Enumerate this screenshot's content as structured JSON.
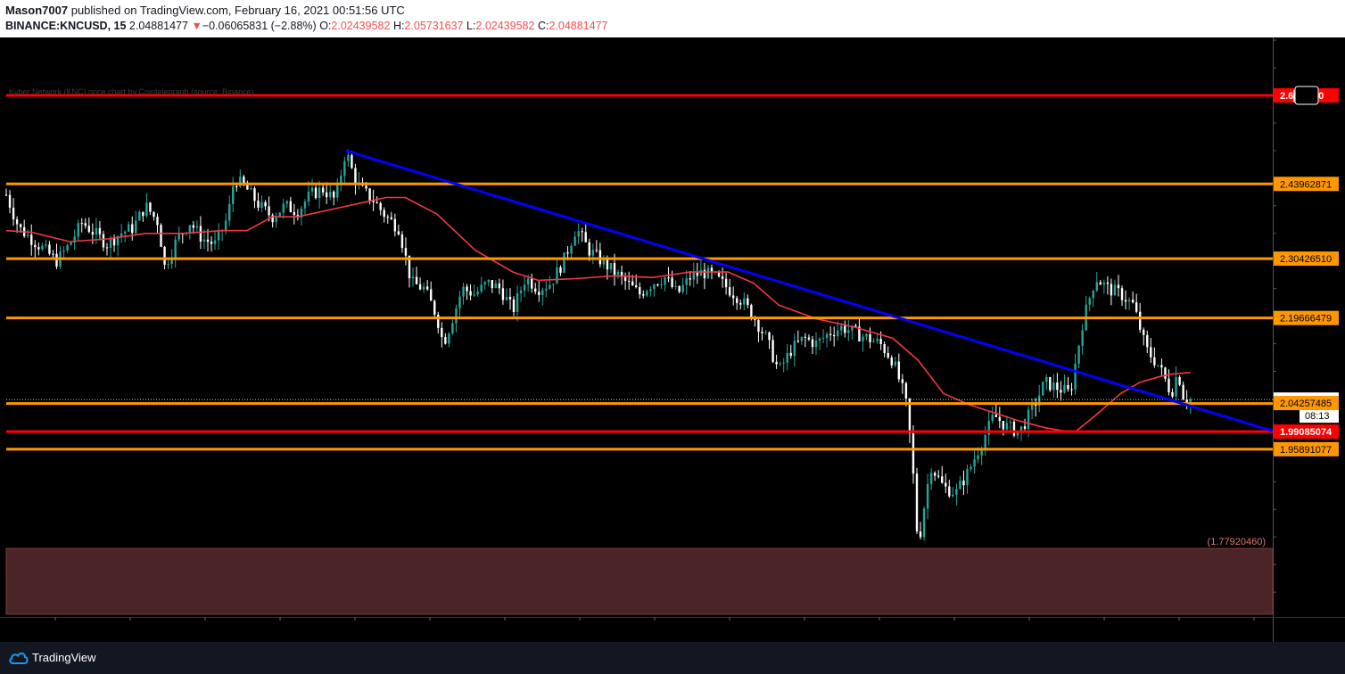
{
  "header": {
    "author": "Mason7007",
    "published_text": "published on TradingView.com, February 16, 2021 00:51:56 UTC",
    "symbol": "BINANCE:KNCUSD, 15",
    "last_price": "2.04881477",
    "change_arrow": "▼",
    "change": "−0.06065831 (−2.88%)",
    "open_label": "O:",
    "open": "2.02439582",
    "high_label": "H:",
    "high": "2.05731637",
    "low_label": "L:",
    "low": "2.02439582",
    "close_label": "C:",
    "close": "2.04881477"
  },
  "footer": {
    "brand": "TradingView"
  },
  "colors": {
    "background": "#000000",
    "candle_up": "#26a69a",
    "candle_down": "#ffffff",
    "support_resistance": "#ff9800",
    "key_level": "#ff0000",
    "trendline": "#0000ff",
    "moving_average": "#f23645",
    "demand_zone": "#4a2426"
  },
  "chart_data": {
    "type": "candlestick",
    "symbol": "BINANCE:KNCUSD",
    "interval": "15",
    "y_range": [
      1.655,
      2.705
    ],
    "horizontal_levels": [
      {
        "price": 2.6,
        "color": "key_level",
        "label": "2.6██840"
      },
      {
        "price": 2.43962871,
        "color": "support_resistance",
        "label": "2.43962871"
      },
      {
        "price": 2.3042651,
        "color": "support_resistance",
        "label": "2.30426510"
      },
      {
        "price": 2.19666479,
        "color": "support_resistance",
        "label": "2.19666479"
      },
      {
        "price": 2.0416,
        "color": "support_resistance",
        "label": ""
      },
      {
        "price": 1.99085074,
        "color": "key_level",
        "label": "1.99085074"
      },
      {
        "price": 1.95891077,
        "color": "support_resistance",
        "label": "1.95891077"
      }
    ],
    "top_line_caption": "Kyber Network (KNC) price chart by Cointelegraph (source: Binance)",
    "last_price_label": "2.04881477",
    "countdown_label": "08:13",
    "secondary_price_label": "2.04257485",
    "zone": {
      "top_price": 1.7792046,
      "bottom_price": 1.66,
      "label": "(1.77920460)"
    },
    "trendline": {
      "start": [
        0.268,
        2.5
      ],
      "end": [
        1.0,
        1.992
      ]
    },
    "moving_average": [
      [
        0.0,
        2.355
      ],
      [
        0.02,
        2.352
      ],
      [
        0.05,
        2.335
      ],
      [
        0.08,
        2.34
      ],
      [
        0.11,
        2.35
      ],
      [
        0.14,
        2.35
      ],
      [
        0.17,
        2.355
      ],
      [
        0.19,
        2.355
      ],
      [
        0.21,
        2.38
      ],
      [
        0.23,
        2.38
      ],
      [
        0.26,
        2.395
      ],
      [
        0.28,
        2.405
      ],
      [
        0.3,
        2.415
      ],
      [
        0.315,
        2.415
      ],
      [
        0.34,
        2.385
      ],
      [
        0.37,
        2.32
      ],
      [
        0.4,
        2.28
      ],
      [
        0.42,
        2.265
      ],
      [
        0.45,
        2.268
      ],
      [
        0.48,
        2.273
      ],
      [
        0.51,
        2.27
      ],
      [
        0.54,
        2.28
      ],
      [
        0.57,
        2.28
      ],
      [
        0.59,
        2.26
      ],
      [
        0.61,
        2.22
      ],
      [
        0.64,
        2.195
      ],
      [
        0.67,
        2.18
      ],
      [
        0.7,
        2.16
      ],
      [
        0.72,
        2.12
      ],
      [
        0.74,
        2.06
      ],
      [
        0.76,
        2.04
      ],
      [
        0.78,
        2.025
      ],
      [
        0.8,
        2.01
      ],
      [
        0.82,
        1.998
      ],
      [
        0.835,
        1.992
      ],
      [
        0.845,
        1.992
      ],
      [
        0.86,
        2.02
      ],
      [
        0.88,
        2.06
      ],
      [
        0.895,
        2.08
      ],
      [
        0.91,
        2.09
      ],
      [
        0.92,
        2.095
      ],
      [
        0.935,
        2.098
      ]
    ],
    "price_path": [
      [
        0.0,
        2.42
      ],
      [
        0.01,
        2.36
      ],
      [
        0.02,
        2.34
      ],
      [
        0.03,
        2.32
      ],
      [
        0.04,
        2.3
      ],
      [
        0.05,
        2.33
      ],
      [
        0.06,
        2.37
      ],
      [
        0.07,
        2.35
      ],
      [
        0.08,
        2.33
      ],
      [
        0.09,
        2.35
      ],
      [
        0.1,
        2.36
      ],
      [
        0.11,
        2.4
      ],
      [
        0.12,
        2.37
      ],
      [
        0.125,
        2.29
      ],
      [
        0.135,
        2.34
      ],
      [
        0.145,
        2.37
      ],
      [
        0.155,
        2.34
      ],
      [
        0.165,
        2.33
      ],
      [
        0.175,
        2.38
      ],
      [
        0.18,
        2.45
      ],
      [
        0.19,
        2.43
      ],
      [
        0.2,
        2.4
      ],
      [
        0.21,
        2.38
      ],
      [
        0.22,
        2.4
      ],
      [
        0.23,
        2.39
      ],
      [
        0.24,
        2.42
      ],
      [
        0.25,
        2.43
      ],
      [
        0.26,
        2.41
      ],
      [
        0.268,
        2.5
      ],
      [
        0.275,
        2.45
      ],
      [
        0.28,
        2.43
      ],
      [
        0.29,
        2.41
      ],
      [
        0.3,
        2.38
      ],
      [
        0.31,
        2.36
      ],
      [
        0.32,
        2.26
      ],
      [
        0.33,
        2.25
      ],
      [
        0.34,
        2.2
      ],
      [
        0.345,
        2.15
      ],
      [
        0.35,
        2.18
      ],
      [
        0.36,
        2.25
      ],
      [
        0.37,
        2.24
      ],
      [
        0.38,
        2.26
      ],
      [
        0.39,
        2.25
      ],
      [
        0.4,
        2.21
      ],
      [
        0.41,
        2.27
      ],
      [
        0.42,
        2.25
      ],
      [
        0.43,
        2.26
      ],
      [
        0.44,
        2.3
      ],
      [
        0.45,
        2.36
      ],
      [
        0.46,
        2.32
      ],
      [
        0.47,
        2.3
      ],
      [
        0.48,
        2.28
      ],
      [
        0.49,
        2.26
      ],
      [
        0.5,
        2.24
      ],
      [
        0.51,
        2.26
      ],
      [
        0.52,
        2.27
      ],
      [
        0.53,
        2.24
      ],
      [
        0.54,
        2.27
      ],
      [
        0.55,
        2.28
      ],
      [
        0.56,
        2.27
      ],
      [
        0.57,
        2.25
      ],
      [
        0.58,
        2.23
      ],
      [
        0.59,
        2.2
      ],
      [
        0.6,
        2.16
      ],
      [
        0.61,
        2.1
      ],
      [
        0.62,
        2.14
      ],
      [
        0.63,
        2.16
      ],
      [
        0.64,
        2.15
      ],
      [
        0.65,
        2.17
      ],
      [
        0.66,
        2.18
      ],
      [
        0.67,
        2.17
      ],
      [
        0.68,
        2.16
      ],
      [
        0.69,
        2.15
      ],
      [
        0.7,
        2.12
      ],
      [
        0.71,
        2.05
      ],
      [
        0.715,
        1.95
      ],
      [
        0.72,
        1.78
      ],
      [
        0.725,
        1.86
      ],
      [
        0.73,
        1.93
      ],
      [
        0.74,
        1.89
      ],
      [
        0.75,
        1.88
      ],
      [
        0.76,
        1.92
      ],
      [
        0.77,
        1.97
      ],
      [
        0.78,
        2.02
      ],
      [
        0.79,
        2.0
      ],
      [
        0.8,
        1.99
      ],
      [
        0.81,
        2.03
      ],
      [
        0.82,
        2.08
      ],
      [
        0.83,
        2.07
      ],
      [
        0.84,
        2.06
      ],
      [
        0.85,
        2.19
      ],
      [
        0.86,
        2.27
      ],
      [
        0.87,
        2.25
      ],
      [
        0.88,
        2.24
      ],
      [
        0.89,
        2.22
      ],
      [
        0.9,
        2.14
      ],
      [
        0.91,
        2.11
      ],
      [
        0.92,
        2.06
      ],
      [
        0.925,
        2.1
      ],
      [
        0.93,
        2.05
      ],
      [
        0.935,
        2.049
      ]
    ]
  }
}
